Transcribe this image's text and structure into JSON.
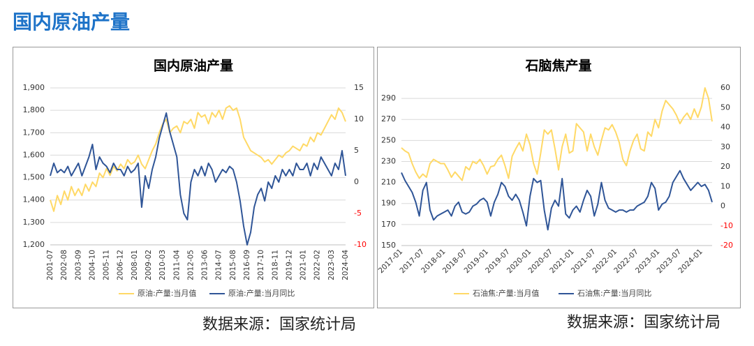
{
  "heading": "国内原油产量",
  "sources": [
    "数据来源：国家统计局",
    "数据来源：国家统计局"
  ],
  "chart_data": [
    {
      "type": "line",
      "title": "国内原油产量",
      "categories": [
        "2001-07",
        null,
        null,
        null,
        "2002-08",
        null,
        null,
        null,
        "2003-09",
        null,
        null,
        null,
        "2004-10",
        null,
        null,
        null,
        "2005-11",
        null,
        null,
        null,
        "2006-12",
        null,
        null,
        null,
        "2008-01",
        null,
        null,
        null,
        "2009-02",
        null,
        null,
        null,
        "2010-03",
        null,
        null,
        null,
        "2011-04",
        null,
        null,
        null,
        "2012-05",
        null,
        null,
        null,
        "2013-06",
        null,
        null,
        null,
        "2014-07",
        null,
        null,
        null,
        "2015-08",
        null,
        null,
        null,
        "2016-09",
        null,
        null,
        null,
        "2017-10",
        null,
        null,
        null,
        "2018-11",
        null,
        null,
        null,
        "2019-12",
        null,
        null,
        null,
        "2021-01",
        null,
        null,
        null,
        "2022-02",
        null,
        null,
        null,
        "2023-03",
        null,
        null,
        null,
        "2024-04"
      ],
      "series": [
        {
          "name": "原油:产量:当月值",
          "color": "#ffd966",
          "values": [
            1400,
            1350,
            1420,
            1380,
            1440,
            1400,
            1460,
            1420,
            1450,
            1420,
            1470,
            1440,
            1480,
            1460,
            1520,
            1500,
            1540,
            1510,
            1550,
            1530,
            1560,
            1540,
            1580,
            1560,
            1570,
            1600,
            1560,
            1540,
            1580,
            1620,
            1650,
            1700,
            1740,
            1760,
            1700,
            1720,
            1730,
            1700,
            1750,
            1740,
            1760,
            1720,
            1790,
            1770,
            1780,
            1740,
            1790,
            1770,
            1800,
            1760,
            1810,
            1820,
            1800,
            1810,
            1760,
            1680,
            1650,
            1620,
            1610,
            1600,
            1590,
            1570,
            1580,
            1560,
            1580,
            1600,
            1590,
            1610,
            1620,
            1640,
            1630,
            1620,
            1650,
            1640,
            1680,
            1660,
            1700,
            1690,
            1720,
            1750,
            1780,
            1760,
            1810,
            1790,
            1750
          ]
        },
        {
          "name": "原油:产量:当月同比",
          "color": "#2f5597",
          "axis": "y2",
          "values": [
            1,
            3,
            1.5,
            2,
            1.5,
            2.5,
            1,
            2,
            3,
            1,
            2.5,
            4,
            6,
            2,
            4,
            3,
            2.5,
            1.5,
            3,
            2,
            2,
            1,
            2.5,
            1.5,
            2,
            3,
            -4,
            1,
            -1,
            2,
            4,
            7,
            9,
            11,
            8,
            6,
            4,
            -2,
            -5,
            -6,
            0,
            2,
            1,
            2.5,
            1,
            3,
            2,
            0,
            1,
            2,
            1.5,
            2.5,
            2,
            0,
            -3,
            -7,
            -10,
            -8,
            -4,
            -2,
            -1,
            -3,
            0,
            -1,
            1,
            0,
            2,
            1,
            2,
            1,
            3,
            2,
            2,
            3,
            1,
            3,
            2,
            4,
            3,
            2,
            1,
            3,
            2,
            5,
            1
          ]
        }
      ],
      "ylim": [
        1200,
        1900
      ],
      "yticks": [
        {
          "value": 1200,
          "label": "1,200"
        },
        {
          "value": 1300,
          "label": "1,300"
        },
        {
          "value": 1400,
          "label": "1,400"
        },
        {
          "value": 1500,
          "label": "1,500"
        },
        {
          "value": 1600,
          "label": "1,600"
        },
        {
          "value": 1700,
          "label": "1,700"
        },
        {
          "value": 1800,
          "label": "1,800"
        },
        {
          "value": 1900,
          "label": "1,900"
        }
      ],
      "y2lim": [
        -10,
        15
      ],
      "y2ticks": [
        -10,
        -5,
        0,
        5,
        10,
        15
      ],
      "y2_negative_tick_color": "#ff0000",
      "grid": true
    },
    {
      "type": "line",
      "title": "石脑焦产量",
      "categories": [
        "2017-01",
        null,
        null,
        null,
        null,
        null,
        "2017-07",
        null,
        null,
        null,
        null,
        null,
        "2018-01",
        null,
        null,
        null,
        null,
        null,
        "2018-07",
        null,
        null,
        null,
        null,
        null,
        "2019-01",
        null,
        null,
        null,
        null,
        null,
        "2019-07",
        null,
        null,
        null,
        null,
        null,
        "2020-01",
        null,
        null,
        null,
        null,
        null,
        "2020-07",
        null,
        null,
        null,
        null,
        null,
        "2021-01",
        null,
        null,
        null,
        null,
        null,
        "2021-07",
        null,
        null,
        null,
        null,
        null,
        "2022-01",
        null,
        null,
        null,
        null,
        null,
        "2022-07",
        null,
        null,
        null,
        null,
        null,
        "2023-01",
        null,
        null,
        null,
        null,
        null,
        "2023-07",
        null,
        null,
        null,
        null,
        null,
        "2024-01",
        null,
        null,
        null
      ],
      "series": [
        {
          "name": "石油焦:产量:当月值",
          "color": "#ffd966",
          "values": [
            243,
            240,
            238,
            228,
            220,
            214,
            218,
            215,
            228,
            232,
            230,
            228,
            228,
            222,
            215,
            220,
            216,
            212,
            225,
            222,
            230,
            228,
            232,
            226,
            218,
            225,
            226,
            232,
            236,
            226,
            214,
            235,
            242,
            248,
            240,
            256,
            246,
            228,
            218,
            238,
            260,
            256,
            260,
            242,
            222,
            244,
            256,
            238,
            240,
            266,
            262,
            258,
            240,
            256,
            244,
            236,
            250,
            262,
            260,
            265,
            258,
            248,
            232,
            226,
            240,
            250,
            256,
            242,
            240,
            258,
            254,
            270,
            262,
            278,
            288,
            284,
            280,
            274,
            266,
            272,
            276,
            270,
            280,
            272,
            282,
            300,
            290,
            268
          ]
        },
        {
          "name": "石油焦:产量:当月同比",
          "color": "#2f5597",
          "axis": "y2",
          "values": [
            17,
            13,
            10,
            7,
            2,
            -5,
            8,
            12,
            -2,
            -7,
            -5,
            -4,
            -3,
            -2,
            -5,
            0,
            2,
            -3,
            -4,
            -3,
            0,
            1,
            3,
            4,
            2,
            -5,
            2,
            6,
            12,
            10,
            5,
            3,
            6,
            3,
            -3,
            -10,
            5,
            14,
            12,
            13,
            -2,
            -12,
            -1,
            3,
            0,
            14,
            -4,
            -6,
            -2,
            0,
            -3,
            3,
            8,
            5,
            -5,
            1,
            12,
            3,
            -1,
            -2,
            -3,
            -2,
            -2,
            -3,
            -2,
            -2,
            0,
            1,
            2,
            5,
            12,
            9,
            -2,
            1,
            2,
            5,
            12,
            15,
            18,
            14,
            11,
            8,
            10,
            12,
            10,
            11,
            8,
            2
          ]
        }
      ],
      "ylim": [
        150,
        300
      ],
      "yticks": [
        150,
        170,
        190,
        210,
        230,
        250,
        270,
        290
      ],
      "y2lim": [
        -20,
        60
      ],
      "y2ticks": [
        -20,
        -10,
        0,
        10,
        20,
        30,
        40,
        50,
        60
      ],
      "y2_negative_tick_color": "#ff0000",
      "grid": true
    }
  ]
}
